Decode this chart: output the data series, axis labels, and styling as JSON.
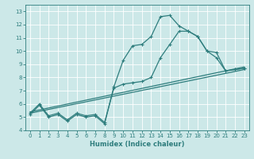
{
  "title": "",
  "xlabel": "Humidex (Indice chaleur)",
  "xlim": [
    -0.5,
    23.5
  ],
  "ylim": [
    4,
    13.5
  ],
  "xticks": [
    0,
    1,
    2,
    3,
    4,
    5,
    6,
    7,
    8,
    9,
    10,
    11,
    12,
    13,
    14,
    15,
    16,
    17,
    18,
    19,
    20,
    21,
    22,
    23
  ],
  "yticks": [
    4,
    5,
    6,
    7,
    8,
    9,
    10,
    11,
    12,
    13
  ],
  "bg_color": "#cce8e8",
  "line_color": "#2e7d7d",
  "grid_major_color": "#ffffff",
  "grid_minor_color": "#e0f0f0",
  "line1_x": [
    0,
    1,
    2,
    3,
    4,
    5,
    6,
    7,
    8,
    9,
    10,
    11,
    12,
    13,
    14,
    15,
    16,
    17,
    18,
    19,
    20,
    21,
    22,
    23
  ],
  "line1_y": [
    5.2,
    5.9,
    5.0,
    5.2,
    4.7,
    5.2,
    5.0,
    5.1,
    4.5,
    7.3,
    9.3,
    10.4,
    10.5,
    11.1,
    12.6,
    12.7,
    11.9,
    11.5,
    11.1,
    10.0,
    9.9,
    8.5,
    8.6,
    8.7
  ],
  "line2_x": [
    0,
    1,
    2,
    3,
    4,
    5,
    6,
    7,
    8,
    9,
    10,
    11,
    12,
    13,
    14,
    15,
    16,
    17,
    18,
    19,
    20,
    21,
    22,
    23
  ],
  "line2_y": [
    5.3,
    6.0,
    5.1,
    5.3,
    4.8,
    5.3,
    5.1,
    5.2,
    4.6,
    7.2,
    7.5,
    7.6,
    7.7,
    8.0,
    9.5,
    10.5,
    11.5,
    11.5,
    11.1,
    10.0,
    9.5,
    8.5,
    8.6,
    8.7
  ],
  "line3_x": [
    0,
    23
  ],
  "line3_y": [
    5.3,
    8.6
  ],
  "line4_x": [
    0,
    23
  ],
  "line4_y": [
    5.4,
    8.8
  ]
}
